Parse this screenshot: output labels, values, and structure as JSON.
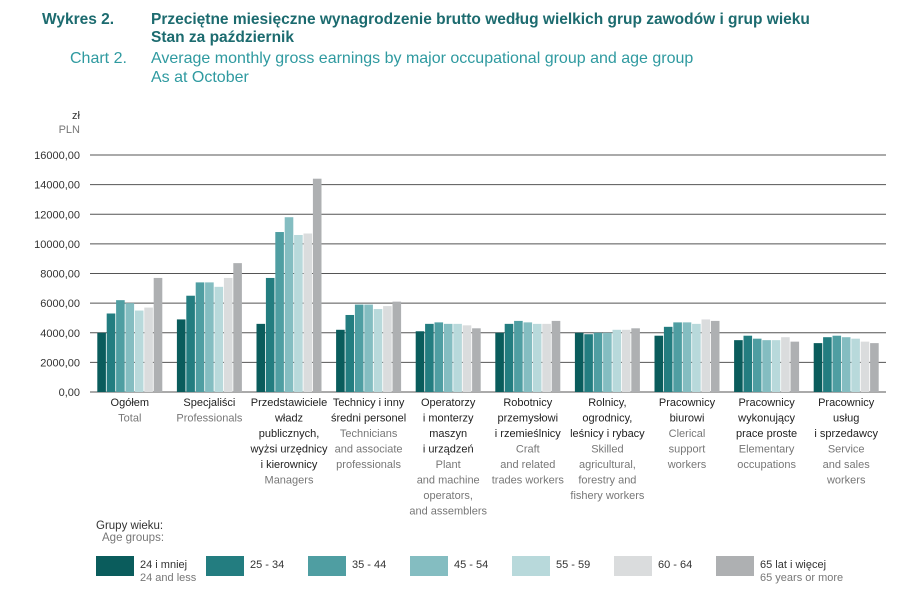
{
  "header": {
    "label_pl": "Wykres 2.",
    "title_pl_1": "Przeciętne miesięczne wynagrodzenie brutto według wielkich grup zawodów i grup wieku",
    "title_pl_2": "Stan za październik",
    "label_en": "Chart 2.",
    "title_en_1": "Average monthly gross earnings by major occupational group and age group",
    "title_en_2": "As at October"
  },
  "axis": {
    "unit_pl": "zł",
    "unit_en": "PLN"
  },
  "legend": {
    "title_pl": "Grupy wieku:",
    "title_en": "Age groups:",
    "items": [
      {
        "label": "24 i mniej",
        "sub": "24 and less",
        "color": "#0a5c5c"
      },
      {
        "label": "25 - 34",
        "sub": "",
        "color": "#237d80"
      },
      {
        "label": "35 - 44",
        "sub": "",
        "color": "#4f9ea2"
      },
      {
        "label": "45 - 54",
        "sub": "",
        "color": "#84bdc1"
      },
      {
        "label": "55 - 59",
        "sub": "",
        "color": "#b8d9db"
      },
      {
        "label": "60 - 64",
        "sub": "",
        "color": "#dadcdd"
      },
      {
        "label": "65 lat i więcej",
        "sub": "65 years or more",
        "color": "#aeb0b2"
      }
    ]
  },
  "chart_data": {
    "type": "bar",
    "title": "Average monthly gross earnings by major occupational group and age group",
    "ylabel": "zł / PLN",
    "ylim": [
      0,
      16000
    ],
    "yticks": [
      "0,00",
      "2000,00",
      "4000,00",
      "6000,00",
      "8000,00",
      "10000,00",
      "12000,00",
      "14000,00",
      "16000,00"
    ],
    "grid": true,
    "legend_position": "bottom",
    "categories": [
      {
        "pl": [
          "Ogółem"
        ],
        "en": [
          "Total"
        ]
      },
      {
        "pl": [
          "Specjaliści"
        ],
        "en": [
          "Professionals"
        ]
      },
      {
        "pl": [
          "Przedstawiciele",
          "władz",
          "publicznych,",
          "wyżsi urzędnicy",
          "i kierownicy"
        ],
        "en": [
          "Managers"
        ]
      },
      {
        "pl": [
          "Technicy i inny",
          "średni personel"
        ],
        "en": [
          "Technicians",
          "and associate",
          "professionals"
        ]
      },
      {
        "pl": [
          "Operatorzy",
          "i monterzy",
          "maszyn",
          "i urządzeń"
        ],
        "en": [
          "Plant",
          "and machine",
          "operators,",
          "and assemblers"
        ]
      },
      {
        "pl": [
          "Robotnicy",
          "przemysłowi",
          "i rzemieślnicy"
        ],
        "en": [
          "Craft",
          "and related",
          "trades workers"
        ]
      },
      {
        "pl": [
          "Rolnicy,",
          "ogrodnicy,",
          "leśnicy i rybacy"
        ],
        "en": [
          "Skilled",
          "agricultural,",
          "forestry and",
          "fishery workers"
        ]
      },
      {
        "pl": [
          "Pracownicy",
          "biurowi"
        ],
        "en": [
          "Clerical",
          "support",
          "workers"
        ]
      },
      {
        "pl": [
          "Pracownicy",
          "wykonujący",
          "prace proste"
        ],
        "en": [
          "Elementary",
          "occupations"
        ]
      },
      {
        "pl": [
          "Pracownicy",
          "usług",
          "i sprzedawcy"
        ],
        "en": [
          "Service",
          "and sales",
          "workers"
        ]
      }
    ],
    "series": [
      {
        "name": "24 i mniej",
        "values": [
          4000,
          4900,
          4600,
          4200,
          4100,
          4000,
          4000,
          3800,
          3500,
          3300
        ]
      },
      {
        "name": "25 - 34",
        "values": [
          5300,
          6500,
          7700,
          5200,
          4600,
          4600,
          3900,
          4400,
          3800,
          3700
        ]
      },
      {
        "name": "35 - 44",
        "values": [
          6200,
          7400,
          10800,
          5900,
          4700,
          4800,
          4000,
          4700,
          3600,
          3800
        ]
      },
      {
        "name": "45 - 54",
        "values": [
          6000,
          7400,
          11800,
          5900,
          4600,
          4700,
          4000,
          4700,
          3500,
          3700
        ]
      },
      {
        "name": "55 - 59",
        "values": [
          5500,
          7100,
          10600,
          5600,
          4600,
          4600,
          4200,
          4600,
          3500,
          3600
        ]
      },
      {
        "name": "60 - 64",
        "values": [
          5700,
          7700,
          10700,
          5800,
          4500,
          4600,
          4200,
          4900,
          3700,
          3400
        ]
      },
      {
        "name": "65 lat i więcej",
        "values": [
          7700,
          8700,
          14400,
          6100,
          4300,
          4800,
          4300,
          4800,
          3400,
          3300
        ]
      }
    ]
  }
}
